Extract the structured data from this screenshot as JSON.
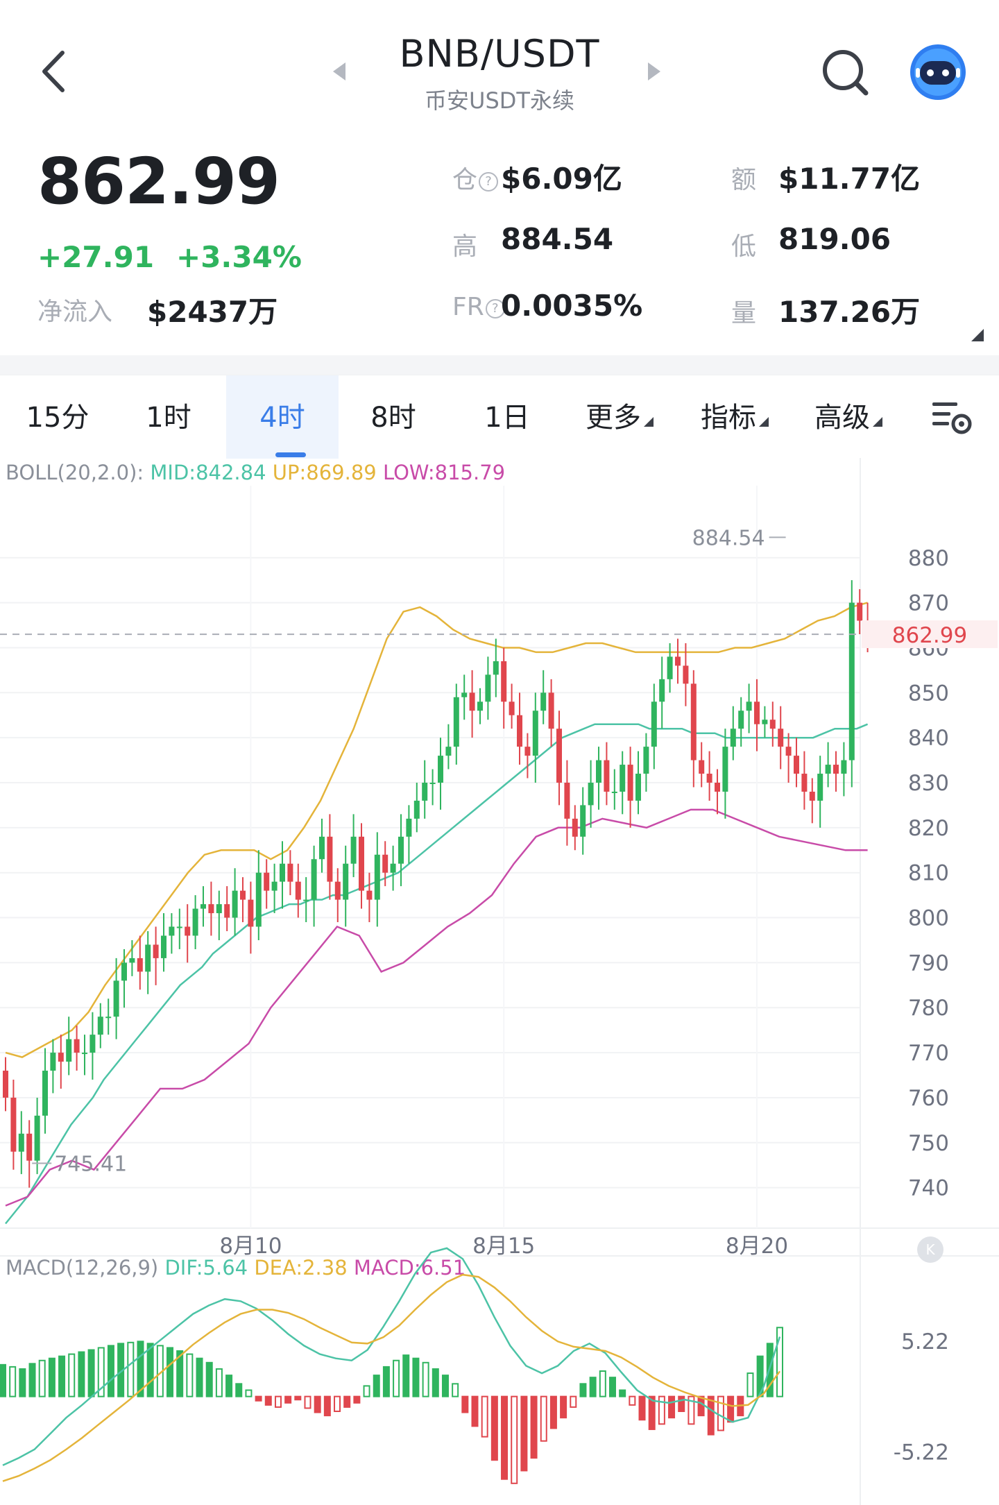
{
  "header": {
    "pair": "BNB/USDT",
    "subtitle": "币安USDT永续",
    "icons": [
      "back-arrow-icon",
      "prev-pair-icon",
      "next-pair-icon",
      "search-icon",
      "robot-avatar-icon"
    ]
  },
  "stats": {
    "price": "862.99",
    "change": "+27.91",
    "change_pct": "+3.34%",
    "net_inflow_label": "净流入",
    "net_inflow_value": "$2437万",
    "open_interest_label": "仓",
    "open_interest_value": "$6.09亿",
    "turnover_label": "额",
    "turnover_value": "$11.77亿",
    "high_label": "高",
    "high_value": "884.54",
    "low_label": "低",
    "low_value": "819.06",
    "fr_label": "FR",
    "fr_value": "0.0035%",
    "volume_label": "量",
    "volume_value": "137.26万"
  },
  "tabs": [
    {
      "label": "15分",
      "active": false
    },
    {
      "label": "1时",
      "active": false
    },
    {
      "label": "4时",
      "active": true
    },
    {
      "label": "8时",
      "active": false
    },
    {
      "label": "1日",
      "active": false
    },
    {
      "label": "更多",
      "active": false
    },
    {
      "label": "指标",
      "active": false
    },
    {
      "label": "高级",
      "active": false
    }
  ],
  "colors": {
    "up": "#2fb45e",
    "down": "#e0464d",
    "mid": "#4cc3a6",
    "upper": "#e4b43a",
    "lower": "#c84ba8",
    "accent": "#3a7de8"
  },
  "chart_data": [
    {
      "type": "candlestick",
      "indicator": "BOLL",
      "legend": {
        "name": "BOLL(20,2.0):",
        "mid": "MID:842.84",
        "up": "UP:869.89",
        "low": "LOW:815.79"
      },
      "y_ticks": [
        "880",
        "870",
        "860",
        "850",
        "840",
        "830",
        "820",
        "810",
        "800",
        "790",
        "780",
        "770",
        "760",
        "750",
        "740"
      ],
      "y_tick_values": [
        880,
        870,
        860,
        850,
        840,
        830,
        820,
        810,
        800,
        790,
        780,
        770,
        760,
        750,
        740
      ],
      "ylim": [
        731,
        896
      ],
      "x_ticks": [
        "8月10",
        "8月15",
        "8月20"
      ],
      "x_tick_index": [
        31,
        63,
        95
      ],
      "last_price_label": "862.99",
      "last_price": 862.99,
      "high_marker": "884.54",
      "high_value": 884.54,
      "high_index": 99,
      "low_marker": "745.41",
      "low_value": 745.41,
      "low_index": 3,
      "closes": [
        760,
        748,
        752,
        746,
        756,
        766,
        770,
        768,
        773,
        770,
        770,
        774,
        778,
        778,
        786,
        790,
        791,
        788,
        794,
        791,
        796,
        798,
        798,
        796,
        802,
        803,
        801,
        803,
        800,
        806,
        804,
        798,
        810,
        806,
        808,
        812,
        808,
        804,
        804,
        813,
        818,
        808,
        804,
        812,
        818,
        806,
        804,
        814,
        810,
        812,
        818,
        822,
        826,
        830,
        830,
        836,
        838,
        849,
        850,
        846,
        848,
        854,
        857,
        848,
        845,
        838,
        836,
        846,
        850,
        842,
        830,
        822,
        818,
        825,
        830,
        835,
        828,
        828,
        834,
        826,
        832,
        838,
        848,
        853,
        858,
        856,
        852,
        835,
        832,
        830,
        828,
        838,
        842,
        846,
        848,
        843,
        844,
        842,
        838,
        836,
        832,
        828,
        826,
        832,
        834,
        832,
        835,
        870,
        866,
        863
      ],
      "mid_band": [
        732,
        735,
        738,
        742,
        746,
        750,
        754,
        757,
        760,
        764,
        767,
        770,
        773,
        776,
        779,
        782,
        785,
        787,
        789,
        792,
        794,
        796,
        798,
        800,
        801,
        802,
        803,
        803,
        804,
        804,
        805,
        805,
        806,
        807,
        808,
        809,
        810,
        812,
        814,
        816,
        818,
        820,
        822,
        824,
        826,
        828,
        830,
        832,
        834,
        836,
        838,
        840,
        841,
        842,
        843,
        843,
        843,
        843,
        843,
        842,
        842,
        842,
        842,
        841,
        841,
        841,
        840,
        840,
        840,
        840,
        840,
        840,
        840,
        840,
        840,
        841,
        842,
        842,
        842,
        843
      ],
      "upper_band": [
        770,
        769,
        771,
        773,
        775,
        779,
        785,
        790,
        795,
        800,
        805,
        810,
        814,
        815,
        815,
        815,
        813,
        815,
        820,
        826,
        834,
        842,
        852,
        862,
        868,
        869,
        867,
        864,
        862,
        861,
        860,
        860,
        859,
        859,
        860,
        861,
        861,
        860,
        859,
        859,
        859,
        859,
        859,
        859,
        860,
        860,
        861,
        862,
        864,
        866,
        867,
        869,
        870
      ],
      "lower_band": [
        736,
        738,
        744,
        746,
        744,
        750,
        756,
        762,
        762,
        764,
        768,
        772,
        780,
        786,
        792,
        798,
        796,
        788,
        790,
        794,
        798,
        801,
        805,
        812,
        818,
        820,
        820,
        822,
        821,
        820,
        822,
        824,
        824,
        822,
        820,
        818,
        817,
        816,
        815,
        815
      ],
      "price_unit": "USDT"
    },
    {
      "type": "bar",
      "indicator": "MACD",
      "legend": {
        "name": "MACD(12,26,9)",
        "dif": "DIF:5.64",
        "dea": "DEA:2.38",
        "macd": "MACD:6.51"
      },
      "y_ticks": [
        "5.22",
        "-5.22"
      ],
      "y_tick_values": [
        5.22,
        -5.22
      ],
      "ylim": [
        -9,
        10
      ],
      "values": [
        3,
        2.8,
        2.6,
        3.1,
        3.4,
        3.6,
        3.8,
        4.0,
        4.2,
        4.4,
        4.6,
        4.8,
        5.0,
        5.1,
        5.2,
        5.0,
        4.8,
        4.6,
        4.3,
        4.0,
        3.6,
        3.2,
        2.6,
        2.0,
        1.2,
        0.6,
        -0.4,
        -0.8,
        -1.0,
        -0.6,
        -0.3,
        -1.1,
        -1.5,
        -1.8,
        -1.4,
        -1.0,
        -0.6,
        1.0,
        2.0,
        2.8,
        3.4,
        3.9,
        3.6,
        3.2,
        2.6,
        2.0,
        1.2,
        -1.5,
        -2.8,
        -3.8,
        -6.0,
        -7.8,
        -8.2,
        -7.0,
        -5.8,
        -4.2,
        -3.0,
        -2.0,
        -1.0,
        1.2,
        1.8,
        2.4,
        1.8,
        0.6,
        -0.8,
        -2.2,
        -3.1,
        -2.6,
        -2.0,
        -1.4,
        -2.6,
        -1.8,
        -3.6,
        -3.2,
        -2.4,
        -1.8,
        2.2,
        3.8,
        5.0,
        6.51
      ],
      "dif": [
        -6.5,
        -5.8,
        -5.0,
        -3.5,
        -2.0,
        -0.8,
        0.5,
        1.8,
        3.0,
        4.2,
        5.4,
        6.6,
        7.8,
        8.6,
        9.2,
        9.0,
        8.3,
        7.2,
        5.9,
        4.8,
        4.0,
        3.6,
        3.4,
        4.4,
        6.6,
        9.0,
        11.6,
        13.6,
        14.0,
        13.0,
        10.5,
        7.5,
        4.8,
        2.9,
        2.2,
        2.9,
        4.3,
        5.0,
        4.1,
        2.3,
        0.6,
        -0.4,
        -0.6,
        -0.3,
        -0.6,
        -1.6,
        -2.4,
        -2.0,
        1.0,
        5.64
      ],
      "dea": [
        -8.0,
        -7.5,
        -6.8,
        -6.0,
        -5.0,
        -3.9,
        -2.7,
        -1.5,
        -0.3,
        1.0,
        2.3,
        3.6,
        4.9,
        6.0,
        7.0,
        7.8,
        8.2,
        8.2,
        7.9,
        7.3,
        6.5,
        5.8,
        5.1,
        5.0,
        5.6,
        6.7,
        8.2,
        9.6,
        10.8,
        11.5,
        11.3,
        10.3,
        9.0,
        7.5,
        6.2,
        5.2,
        4.7,
        4.5,
        4.3,
        3.7,
        2.8,
        1.8,
        1.0,
        0.4,
        -0.1,
        -0.5,
        -0.9,
        -0.8,
        0.3,
        2.38
      ]
    }
  ]
}
